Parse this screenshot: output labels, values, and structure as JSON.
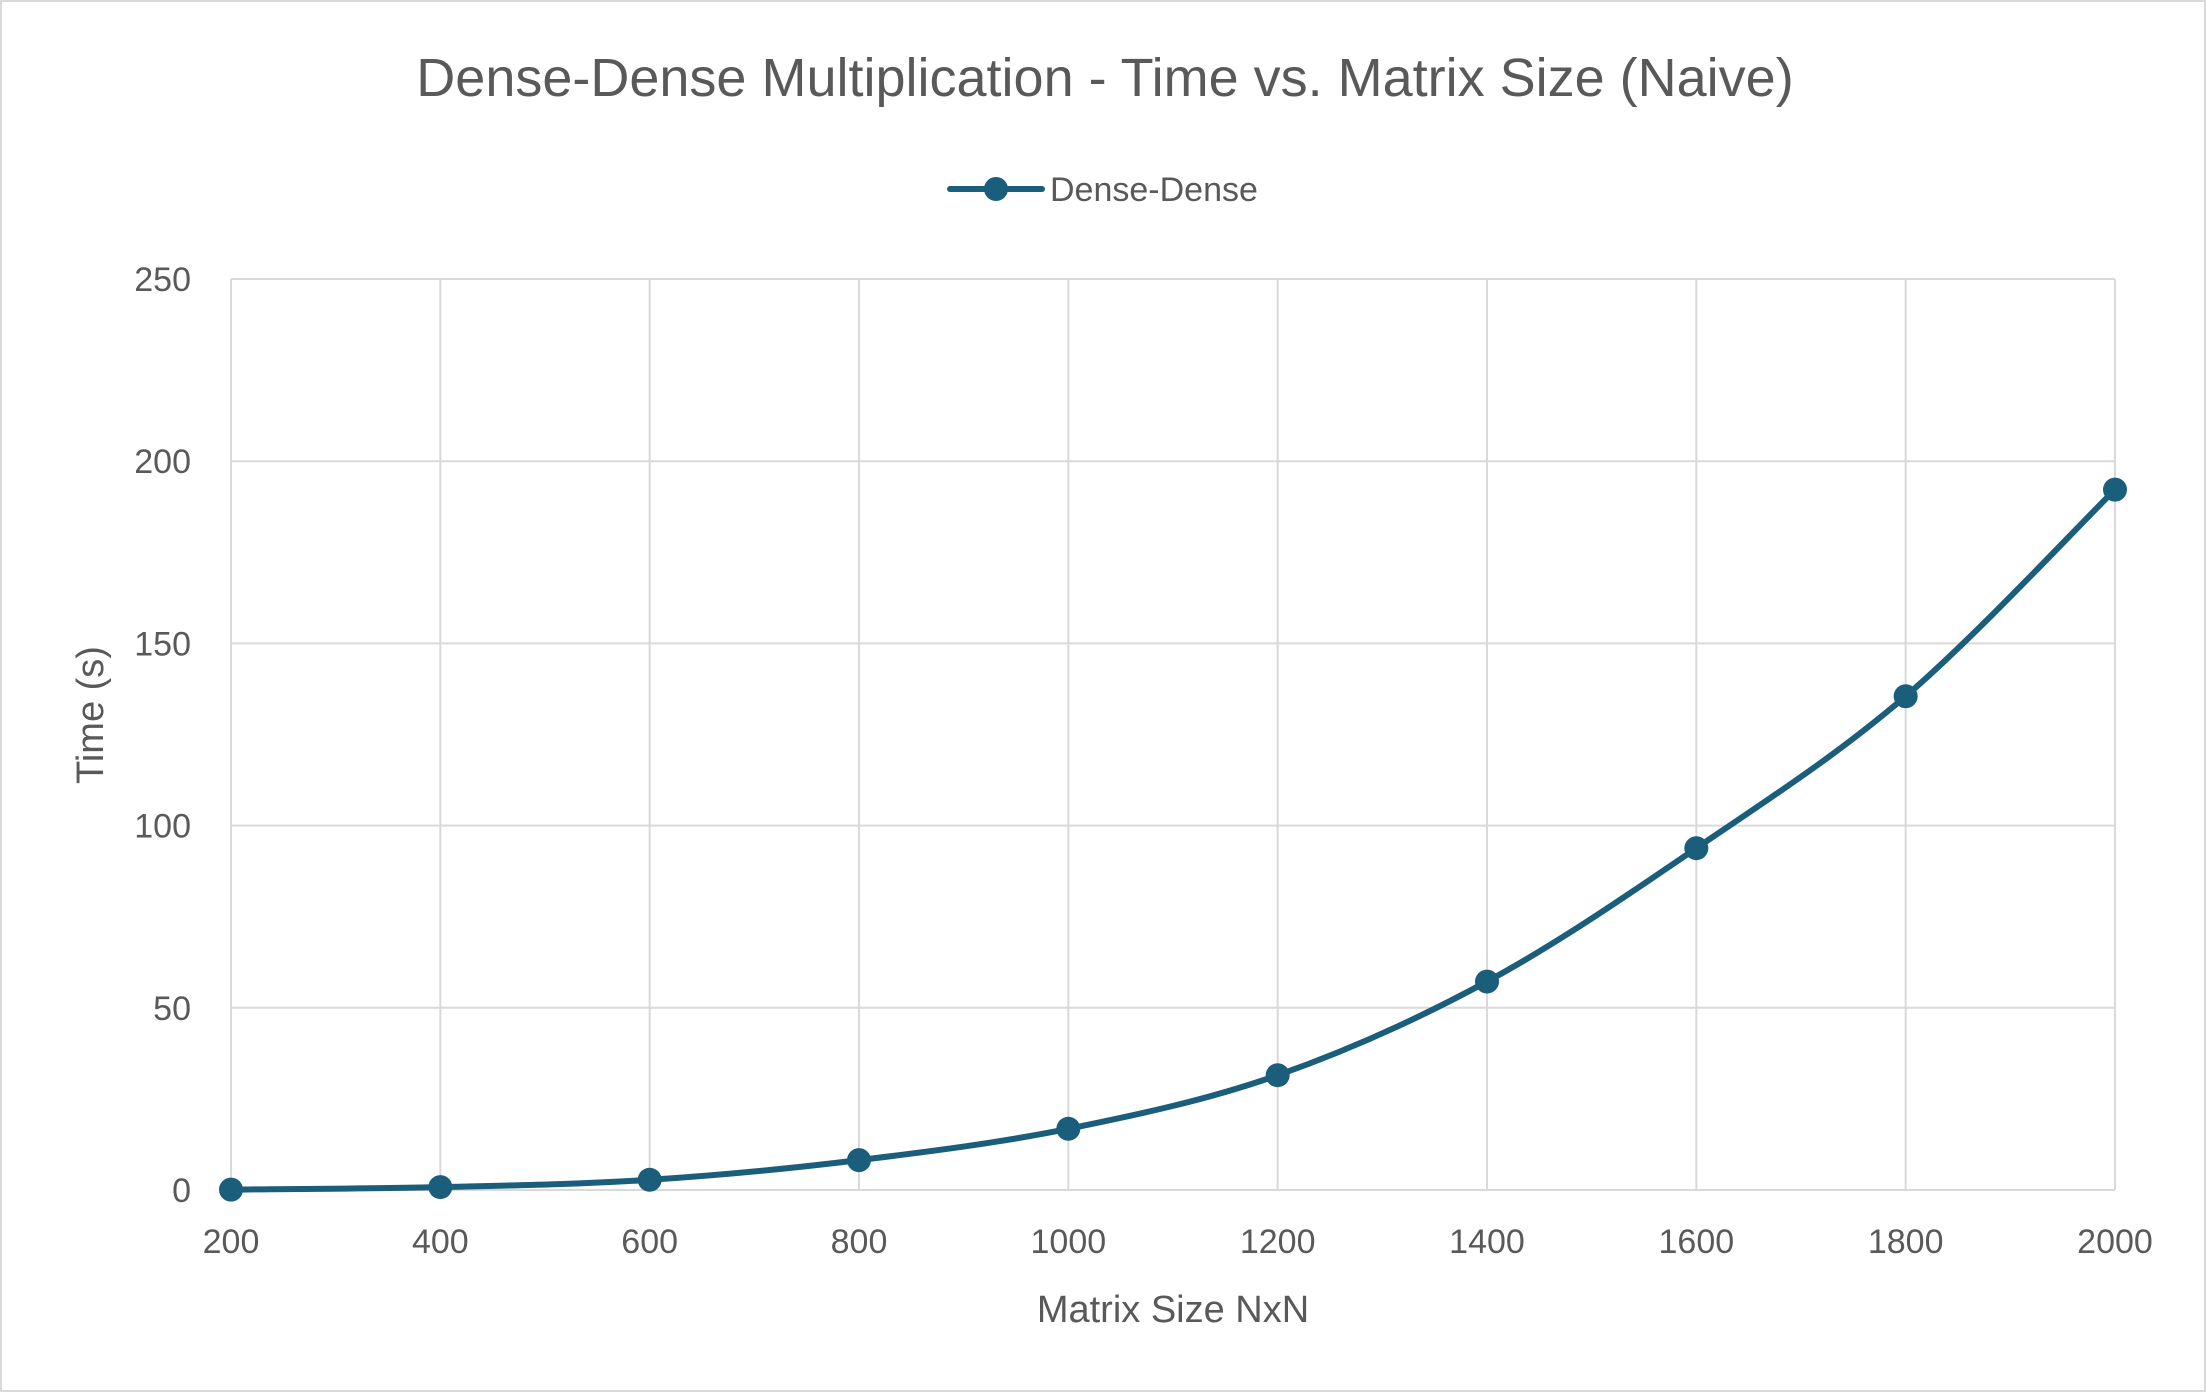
{
  "chart_data": {
    "type": "line",
    "title": "Dense-Dense Multiplication - Time vs. Matrix Size (Naive)",
    "xlabel": "Matrix Size NxN",
    "ylabel": "Time (s)",
    "x": [
      200,
      400,
      600,
      800,
      1000,
      1200,
      1400,
      1600,
      1800,
      2000
    ],
    "x_tick_labels": [
      "200",
      "400",
      "600",
      "800",
      "1000",
      "1200",
      "1400",
      "1600",
      "1800",
      "2000"
    ],
    "y_tick_labels": [
      "0",
      "50",
      "100",
      "150",
      "200",
      "250"
    ],
    "xlim": [
      200,
      2000
    ],
    "ylim": [
      0,
      250
    ],
    "y_ticks": [
      0,
      50,
      100,
      150,
      200,
      250
    ],
    "grid": true,
    "legend_position": "top-center",
    "smooth": true,
    "series": [
      {
        "name": "Dense-Dense",
        "color": "#1b5e7b",
        "values": [
          0.1,
          0.8,
          2.8,
          8.2,
          16.8,
          31.5,
          57.2,
          93.8,
          135.5,
          192.2
        ]
      }
    ]
  }
}
